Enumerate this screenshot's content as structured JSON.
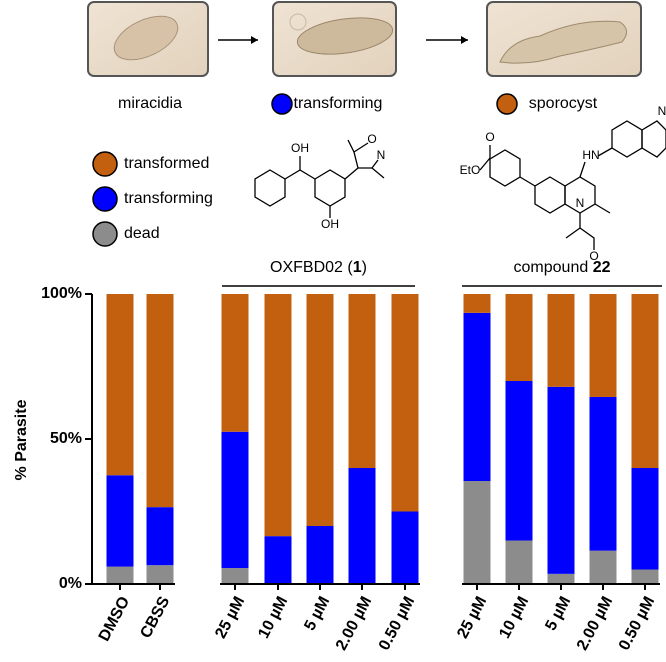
{
  "stages": [
    {
      "label": "miracidia"
    },
    {
      "label": "transforming",
      "color": "#0000ff"
    },
    {
      "label": "sporocyst",
      "color": "#c2600f"
    }
  ],
  "structures": [
    {
      "atoms": [
        "OH",
        "O",
        "N",
        "OH"
      ]
    },
    {
      "atoms": [
        "EtO",
        "O",
        "HN",
        "N",
        "N",
        "O"
      ]
    }
  ],
  "chart_data": {
    "type": "stacked_bar",
    "y_label": "% Parasite",
    "categories": [
      "DMSO",
      "CBSS",
      "25 µM",
      "10 µM",
      "5 µM",
      "2.00 µM",
      "0.50 µM",
      "25 µM",
      "10 µM",
      "5 µM",
      "2.00 µM",
      "0.50 µM"
    ],
    "groups": [
      {
        "parts": [
          {
            "text": "OXFBD02 ("
          },
          {
            "text": "1",
            "bold": true
          },
          {
            "text": ")"
          }
        ]
      },
      {
        "parts": [
          {
            "text": "compound "
          },
          {
            "text": "22",
            "bold": true
          }
        ]
      }
    ],
    "series": [
      {
        "name": "transformed",
        "color": "#c2600f",
        "values": [
          62.5,
          73.5,
          47.5,
          83.5,
          80,
          60,
          75,
          6.5,
          30,
          32,
          35.5,
          60
        ]
      },
      {
        "name": "transforming",
        "color": "#0000ff",
        "values": [
          31.5,
          20,
          47,
          16.5,
          20,
          40,
          25,
          58,
          55,
          64.5,
          53,
          35
        ]
      },
      {
        "name": "dead",
        "color": "#8c8c8c",
        "values": [
          6,
          6.5,
          5.5,
          0,
          0,
          0,
          0,
          35.5,
          15,
          3.5,
          11.5,
          5
        ]
      }
    ],
    "ylim": [
      0,
      100
    ],
    "yticks": [
      {
        "value": 0,
        "label": "0%"
      },
      {
        "value": 50,
        "label": "50%"
      },
      {
        "value": 100,
        "label": "100%"
      }
    ]
  }
}
